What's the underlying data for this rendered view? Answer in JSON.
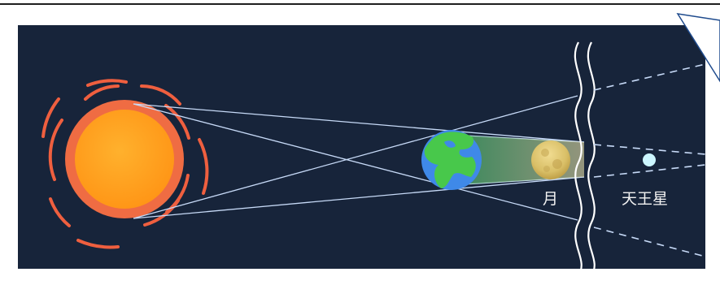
{
  "labels": {
    "moon": "月",
    "uranus": "天王星"
  },
  "icons": {
    "sun": "sun-icon",
    "earth": "earth-icon",
    "moon": "moon-icon",
    "uranus": "uranus-icon",
    "callout": "callout-pointer-icon"
  },
  "colors": {
    "space_background": "#17243a",
    "sun_outer": "#ef5f3f",
    "sun_inner": "#ffa21f",
    "ray": "#c7daf7",
    "earth_ocean": "#3f89e8",
    "earth_land": "#48c84b",
    "moon": "#d8bb61",
    "uranus": "#ccf6ff",
    "callout": "#1f4b8d"
  }
}
